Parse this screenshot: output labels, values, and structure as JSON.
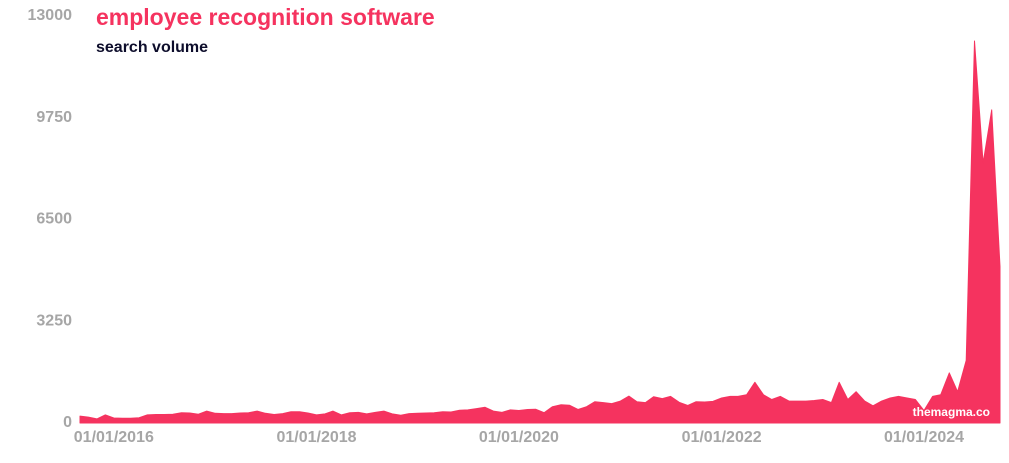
{
  "chart_data": {
    "type": "area",
    "title": "employee recognition software",
    "subtitle": "search volume",
    "annotation": "themagma.co",
    "color": "#f5335f",
    "x": [
      "2015-09-01",
      "2015-10-01",
      "2015-11-01",
      "2015-12-01",
      "2016-01-01",
      "2016-02-01",
      "2016-03-01",
      "2016-04-01",
      "2016-05-01",
      "2016-06-01",
      "2016-07-01",
      "2016-08-01",
      "2016-09-01",
      "2016-10-01",
      "2016-11-01",
      "2016-12-01",
      "2017-01-01",
      "2017-02-01",
      "2017-03-01",
      "2017-04-01",
      "2017-05-01",
      "2017-06-01",
      "2017-07-01",
      "2017-08-01",
      "2017-09-01",
      "2017-10-01",
      "2017-11-01",
      "2017-12-01",
      "2018-01-01",
      "2018-02-01",
      "2018-03-01",
      "2018-04-01",
      "2018-05-01",
      "2018-06-01",
      "2018-07-01",
      "2018-08-01",
      "2018-09-01",
      "2018-10-01",
      "2018-11-01",
      "2018-12-01",
      "2019-01-01",
      "2019-02-01",
      "2019-03-01",
      "2019-04-01",
      "2019-05-01",
      "2019-06-01",
      "2019-07-01",
      "2019-08-01",
      "2019-09-01",
      "2019-10-01",
      "2019-11-01",
      "2019-12-01",
      "2020-01-01",
      "2020-02-01",
      "2020-03-01",
      "2020-04-01",
      "2020-05-01",
      "2020-06-01",
      "2020-07-01",
      "2020-08-01",
      "2020-09-01",
      "2020-10-01",
      "2020-11-01",
      "2020-12-01",
      "2021-01-01",
      "2021-02-01",
      "2021-03-01",
      "2021-04-01",
      "2021-05-01",
      "2021-06-01",
      "2021-07-01",
      "2021-08-01",
      "2021-09-01",
      "2021-10-01",
      "2021-11-01",
      "2021-12-01",
      "2022-01-01",
      "2022-02-01",
      "2022-03-01",
      "2022-04-01",
      "2022-05-01",
      "2022-06-01",
      "2022-07-01",
      "2022-08-01",
      "2022-09-01",
      "2022-10-01",
      "2022-11-01",
      "2022-12-01",
      "2023-01-01",
      "2023-02-01",
      "2023-03-01",
      "2023-04-01",
      "2023-05-01",
      "2023-06-01",
      "2023-07-01",
      "2023-08-01",
      "2023-09-01",
      "2023-10-01",
      "2023-11-01",
      "2023-12-01",
      "2024-01-01",
      "2024-02-01",
      "2024-03-01",
      "2024-04-01",
      "2024-05-01",
      "2024-06-01",
      "2024-07-01",
      "2024-08-01",
      "2024-09-01",
      "2024-10-01"
    ],
    "values": [
      220,
      190,
      130,
      260,
      160,
      150,
      150,
      170,
      260,
      270,
      270,
      280,
      330,
      320,
      280,
      380,
      310,
      300,
      300,
      320,
      330,
      380,
      310,
      270,
      300,
      360,
      360,
      320,
      260,
      290,
      380,
      260,
      330,
      340,
      290,
      340,
      380,
      290,
      250,
      300,
      310,
      320,
      330,
      360,
      350,
      410,
      420,
      460,
      500,
      380,
      340,
      420,
      400,
      430,
      440,
      330,
      520,
      580,
      570,
      430,
      520,
      680,
      650,
      620,
      700,
      860,
      680,
      650,
      840,
      780,
      850,
      660,
      560,
      680,
      670,
      690,
      800,
      850,
      850,
      900,
      1300,
      900,
      750,
      850,
      700,
      700,
      700,
      720,
      750,
      650,
      1300,
      750,
      1000,
      700,
      550,
      700,
      800,
      850,
      800,
      750,
      400,
      850,
      900,
      1600,
      1000,
      2000,
      12200,
      8300,
      10000,
      5000
    ],
    "xlim": [
      "2015-09-01",
      "2024-10-01"
    ],
    "xticks": [
      {
        "value": "2016-01-01",
        "label": "01/01/2016"
      },
      {
        "value": "2018-01-01",
        "label": "01/01/2018"
      },
      {
        "value": "2020-01-01",
        "label": "01/01/2020"
      },
      {
        "value": "2022-01-01",
        "label": "01/01/2022"
      },
      {
        "value": "2024-01-01",
        "label": "01/01/2024"
      }
    ],
    "ylim": [
      0,
      13000
    ],
    "yticks": [
      0,
      3250,
      6500,
      9750,
      13000
    ],
    "grid": false
  }
}
